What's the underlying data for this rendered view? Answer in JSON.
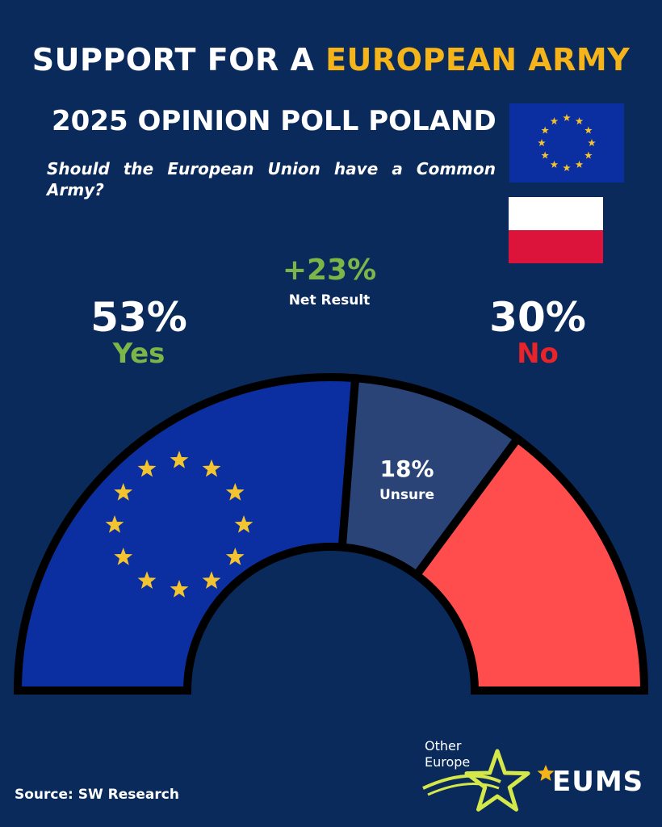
{
  "header": {
    "title_part1": "SUPPORT FOR A ",
    "title_accent": "EUROPEAN ARMY",
    "subtitle": "2025 OPINION POLL POLAND",
    "question": "Should the European Union have a Common Army?"
  },
  "net": {
    "value": "+23%",
    "label": "Net Result"
  },
  "yes": {
    "pct": "53%",
    "label": "Yes"
  },
  "no": {
    "pct": "30%",
    "label": "No"
  },
  "unsure": {
    "pct": "18%",
    "label": "Unsure"
  },
  "footer": {
    "source": "Source: SW Research"
  },
  "logos": {
    "other_europe_line1": "Other",
    "other_europe_line2": "Europe",
    "eums": "EUMS"
  },
  "colors": {
    "background": "#0a2a5c",
    "yes": "#0b2fa0",
    "unsure": "#2b4478",
    "no": "#ff4d4d",
    "yes_text": "#7ab648",
    "no_text": "#e8232a",
    "accent": "#f4b41a",
    "star": "#f4c430"
  },
  "chart_data": {
    "type": "pie",
    "variant": "semicircle",
    "categories": [
      "Yes",
      "Unsure",
      "No"
    ],
    "values": [
      53,
      18,
      30
    ],
    "units": "%"
  }
}
